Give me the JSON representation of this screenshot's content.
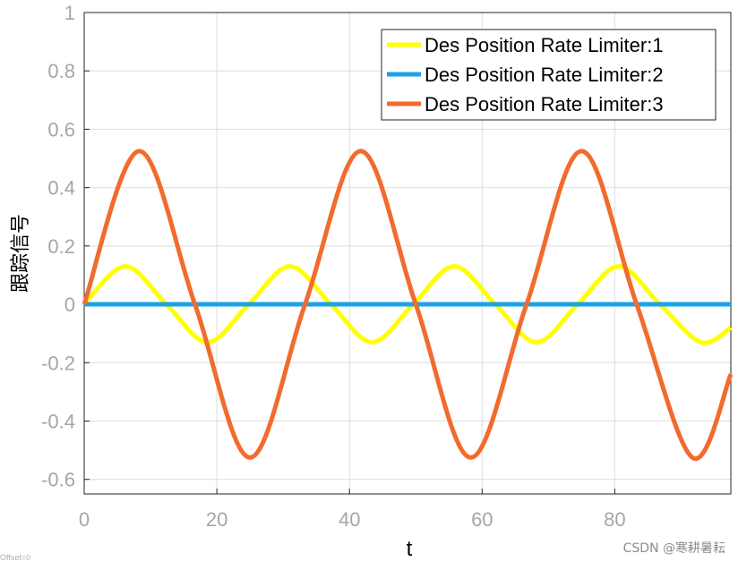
{
  "chart_data": {
    "type": "line",
    "title": "",
    "xlabel": "t",
    "ylabel": "跟踪信号",
    "xlim": [
      0,
      97.5
    ],
    "ylim": [
      -0.65,
      1
    ],
    "xticks": [
      0,
      20,
      40,
      60,
      80
    ],
    "xtick_labels": [
      "0",
      "20",
      "40",
      "60",
      "80"
    ],
    "yticks": [
      1,
      0.8,
      0.6,
      0.4,
      0.2,
      0,
      -0.2,
      -0.4,
      -0.6
    ],
    "ytick_labels": [
      "1",
      "0.8",
      "0.6",
      "0.4",
      "0.2",
      "0",
      "-0.2",
      "-0.4",
      "-0.6"
    ],
    "grid": true,
    "legend_position": "top-right",
    "series": [
      {
        "name": "Des Position Rate Limiter:1",
        "color": "#ffff00",
        "x": [
          0,
          6.2,
          12.4,
          18.6,
          24.8,
          31.0,
          37.2,
          43.4,
          49.6,
          55.8,
          62.0,
          68.2,
          74.4,
          80.6,
          86.8,
          93.0,
          97.5
        ],
        "y": [
          0,
          0.13,
          0,
          -0.13,
          0,
          0.13,
          0,
          -0.13,
          0,
          0.13,
          0,
          -0.13,
          0,
          0.13,
          0,
          -0.13,
          -0.08
        ]
      },
      {
        "name": "Des Position Rate Limiter:2",
        "color": "#1aa3e8",
        "x": [
          0,
          97.5
        ],
        "y": [
          0,
          0
        ]
      },
      {
        "name": "Des Position Rate Limiter:3",
        "color": "#f26b2e",
        "x": [
          0,
          8.3,
          16.7,
          25.0,
          33.3,
          41.7,
          50.0,
          58.3,
          66.7,
          75.0,
          83.3,
          91.7,
          97.5
        ],
        "y": [
          0,
          0.525,
          0,
          -0.525,
          0,
          0.525,
          0,
          -0.525,
          0,
          0.525,
          0,
          -0.525,
          -0.24
        ]
      }
    ]
  },
  "watermark": "CSDN @寒耕暑耘",
  "offset_label": "Offset=0"
}
